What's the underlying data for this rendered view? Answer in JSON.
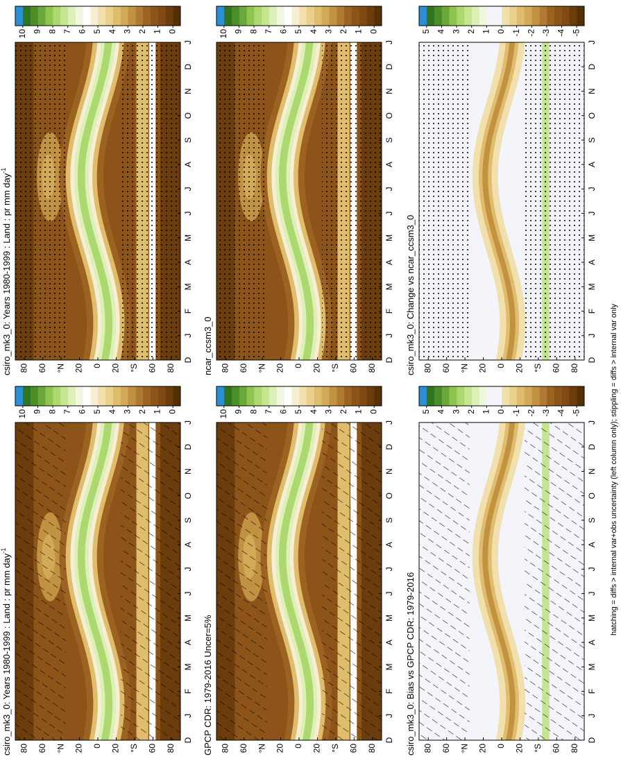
{
  "note": "hatching = diffs > internal var+obs uncertainty (left column only); stippling = diffs > internal var only",
  "chart_data": [
    {
      "type": "contour",
      "title": "csiro_mk3_0: Years 1980-1999 : Land : pr mm day",
      "title_superscript": "-1",
      "pattern": "hatching",
      "categories": [
        "D",
        "J",
        "F",
        "M",
        "A",
        "M",
        "J",
        "J",
        "A",
        "S",
        "O",
        "N",
        "D",
        "J"
      ],
      "ylim": [
        -90,
        90
      ],
      "yticks": [
        80,
        60,
        {
          "value": 40,
          "label": "°N"
        },
        20,
        0,
        {
          "value": -20,
          "label": "20"
        },
        {
          "value": -40,
          "label": "°S"
        },
        {
          "value": -60,
          "label": "60"
        },
        {
          "value": -80,
          "label": "80"
        }
      ],
      "colorbar": {
        "ticks": [
          10,
          9,
          8,
          7,
          6,
          5,
          4,
          3,
          2,
          1,
          0
        ],
        "colors": [
          "#543005",
          "#6b3d0c",
          "#7f4a13",
          "#8c5418",
          "#9c6221",
          "#b07a32",
          "#c29243",
          "#d2a956",
          "#dfbd6c",
          "#e9d08c",
          "#f1e0ae",
          "#f7eed3",
          "#ffffff",
          "#f1f8e0",
          "#dcf0b8",
          "#c5e691",
          "#acd86f",
          "#8fc54f",
          "#6aa83a",
          "#4b8c2b",
          "#2f7520",
          "#2c8fd6"
        ]
      }
    },
    {
      "type": "contour",
      "title": "csiro_mk3_0: Years 1980-1999 : Land : pr mm day",
      "title_superscript": "-1",
      "pattern": "stippling",
      "categories": [
        "D",
        "J",
        "F",
        "M",
        "A",
        "M",
        "J",
        "J",
        "A",
        "S",
        "O",
        "N",
        "D",
        "J"
      ],
      "ylim": [
        -90,
        90
      ],
      "yticks": [
        80,
        60,
        {
          "value": 40,
          "label": "°N"
        },
        20,
        0,
        {
          "value": -20,
          "label": "20"
        },
        {
          "value": -40,
          "label": "°S"
        },
        {
          "value": -60,
          "label": "60"
        },
        {
          "value": -80,
          "label": "80"
        }
      ],
      "colorbar": {
        "ticks": [
          10,
          9,
          8,
          7,
          6,
          5,
          4,
          3,
          2,
          1,
          0
        ],
        "colors": [
          "#543005",
          "#6b3d0c",
          "#7f4a13",
          "#8c5418",
          "#9c6221",
          "#b07a32",
          "#c29243",
          "#d2a956",
          "#dfbd6c",
          "#e9d08c",
          "#f1e0ae",
          "#f7eed3",
          "#ffffff",
          "#f1f8e0",
          "#dcf0b8",
          "#c5e691",
          "#acd86f",
          "#8fc54f",
          "#6aa83a",
          "#4b8c2b",
          "#2f7520",
          "#2c8fd6"
        ]
      }
    },
    {
      "type": "contour",
      "title": "GPCP CDR: 1979-2016 Uncer=5%",
      "pattern": "hatching",
      "categories": [
        "D",
        "J",
        "F",
        "M",
        "A",
        "M",
        "J",
        "J",
        "A",
        "S",
        "O",
        "N",
        "D",
        "J"
      ],
      "ylim": [
        -90,
        90
      ],
      "yticks": [
        80,
        60,
        {
          "value": 40,
          "label": "°N"
        },
        20,
        0,
        {
          "value": -20,
          "label": "20"
        },
        {
          "value": -40,
          "label": "°S"
        },
        {
          "value": -60,
          "label": "60"
        },
        {
          "value": -80,
          "label": "80"
        }
      ],
      "colorbar": {
        "ticks": [
          10,
          9,
          8,
          7,
          6,
          5,
          4,
          3,
          2,
          1,
          0
        ],
        "colors": [
          "#543005",
          "#6b3d0c",
          "#7f4a13",
          "#8c5418",
          "#9c6221",
          "#b07a32",
          "#c29243",
          "#d2a956",
          "#dfbd6c",
          "#e9d08c",
          "#f1e0ae",
          "#f7eed3",
          "#ffffff",
          "#f1f8e0",
          "#dcf0b8",
          "#c5e691",
          "#acd86f",
          "#8fc54f",
          "#6aa83a",
          "#4b8c2b",
          "#2f7520",
          "#2c8fd6"
        ]
      }
    },
    {
      "type": "contour",
      "title": "ncar_ccsm3_0",
      "pattern": "stippling",
      "categories": [
        "D",
        "J",
        "F",
        "M",
        "A",
        "M",
        "J",
        "J",
        "A",
        "S",
        "O",
        "N",
        "D",
        "J"
      ],
      "ylim": [
        -90,
        90
      ],
      "yticks": [
        80,
        60,
        {
          "value": 40,
          "label": "°N"
        },
        20,
        0,
        {
          "value": -20,
          "label": "20"
        },
        {
          "value": -40,
          "label": "°S"
        },
        {
          "value": -60,
          "label": "60"
        },
        {
          "value": -80,
          "label": "80"
        }
      ],
      "colorbar": {
        "ticks": [
          10,
          9,
          8,
          7,
          6,
          5,
          4,
          3,
          2,
          1,
          0
        ],
        "colors": [
          "#543005",
          "#6b3d0c",
          "#7f4a13",
          "#8c5418",
          "#9c6221",
          "#b07a32",
          "#c29243",
          "#d2a956",
          "#dfbd6c",
          "#e9d08c",
          "#f1e0ae",
          "#f7eed3",
          "#ffffff",
          "#f1f8e0",
          "#dcf0b8",
          "#c5e691",
          "#acd86f",
          "#8fc54f",
          "#6aa83a",
          "#4b8c2b",
          "#2f7520",
          "#2c8fd6"
        ]
      }
    },
    {
      "type": "contour",
      "title": "csiro_mk3_0: Bias vs GPCP CDR: 1979-2016",
      "pattern": "hatching",
      "categories": [
        "D",
        "J",
        "F",
        "M",
        "A",
        "M",
        "J",
        "J",
        "A",
        "S",
        "O",
        "N",
        "D",
        "J"
      ],
      "ylim": [
        -90,
        90
      ],
      "yticks": [
        80,
        60,
        {
          "value": 40,
          "label": "°N"
        },
        20,
        0,
        {
          "value": -20,
          "label": "20"
        },
        {
          "value": -40,
          "label": "°S"
        },
        {
          "value": -60,
          "label": "60"
        },
        {
          "value": -80,
          "label": "80"
        }
      ],
      "colorbar": {
        "ticks": [
          5,
          4,
          3,
          2,
          1,
          0,
          -1,
          -2,
          -3,
          -4,
          -5
        ],
        "colors": [
          "#543005",
          "#6b3d0c",
          "#7f4a13",
          "#8c5418",
          "#9c6221",
          "#b07a32",
          "#c29243",
          "#d2a956",
          "#dfbd6c",
          "#e9d08c",
          "#f1e0ae",
          "#f3f5fb",
          "#f3f5fb",
          "#f1f8e0",
          "#dcf0b8",
          "#c5e691",
          "#acd86f",
          "#8fc54f",
          "#6aa83a",
          "#4b8c2b",
          "#2f7520",
          "#2c8fd6"
        ]
      }
    },
    {
      "type": "contour",
      "title": "csiro_mk3_0: Change vs ncar_ccsm3_0",
      "pattern": "stippling",
      "categories": [
        "D",
        "J",
        "F",
        "M",
        "A",
        "M",
        "J",
        "J",
        "A",
        "S",
        "O",
        "N",
        "D",
        "J"
      ],
      "ylim": [
        -90,
        90
      ],
      "yticks": [
        80,
        60,
        {
          "value": 40,
          "label": "°N"
        },
        20,
        0,
        {
          "value": -20,
          "label": "20"
        },
        {
          "value": -40,
          "label": "°S"
        },
        {
          "value": -60,
          "label": "60"
        },
        {
          "value": -80,
          "label": "80"
        }
      ],
      "colorbar": {
        "ticks": [
          5,
          4,
          3,
          2,
          1,
          0,
          -1,
          -2,
          -3,
          -4,
          -5
        ],
        "colors": [
          "#543005",
          "#6b3d0c",
          "#7f4a13",
          "#8c5418",
          "#9c6221",
          "#b07a32",
          "#c29243",
          "#d2a956",
          "#dfbd6c",
          "#e9d08c",
          "#f1e0ae",
          "#f3f5fb",
          "#f3f5fb",
          "#f1f8e0",
          "#dcf0b8",
          "#c5e691",
          "#acd86f",
          "#8fc54f",
          "#6aa83a",
          "#4b8c2b",
          "#2f7520",
          "#2c8fd6"
        ]
      }
    }
  ]
}
